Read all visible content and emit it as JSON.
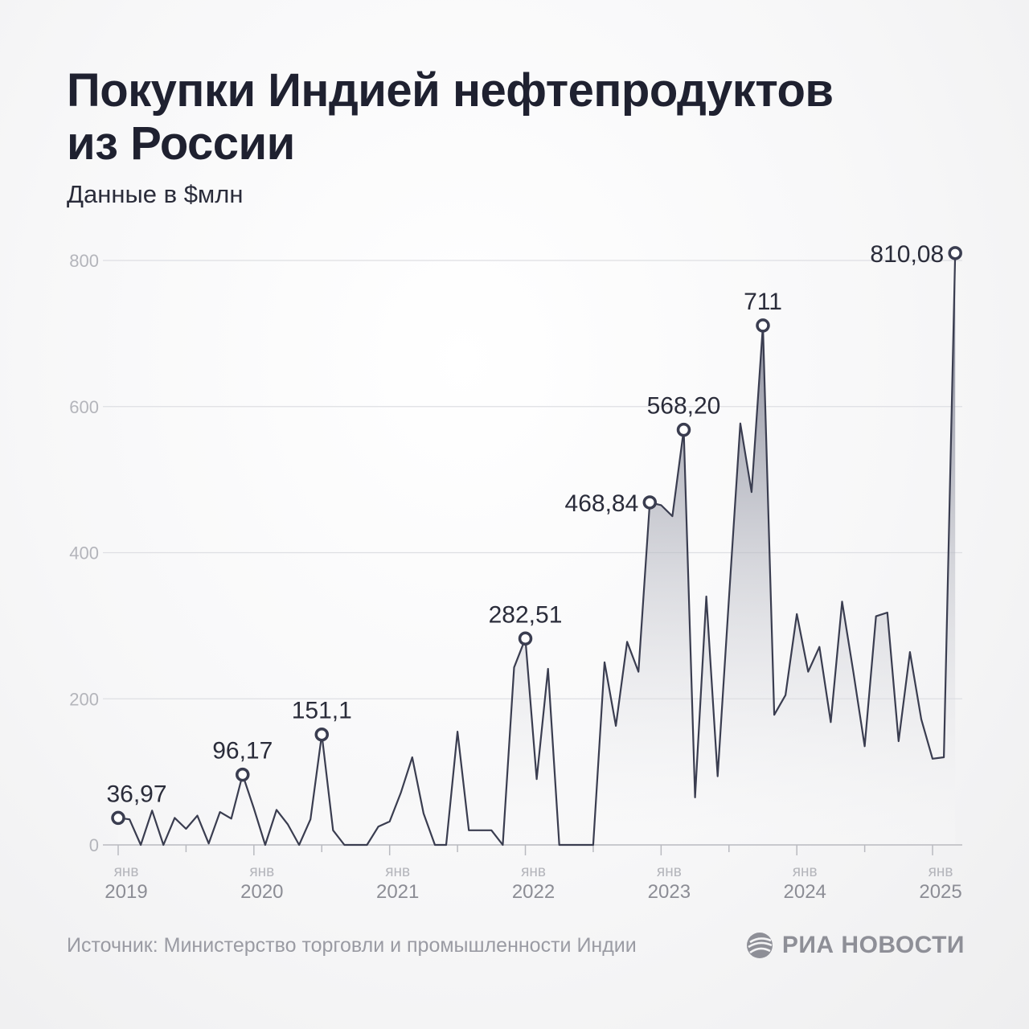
{
  "header": {
    "title_line1": "Покупки Индией нефтепродуктов",
    "title_line2": "из России",
    "subtitle": "Данные в $млн"
  },
  "footer": {
    "source": "Источник: Министерство торговли и промышленности Индии",
    "brand": "РИА НОВОСТИ"
  },
  "colors": {
    "line": "#3a3d50",
    "fill_top": "#6e7184",
    "fill_bottom": "#ffffff",
    "grid": "#dedfe3",
    "tick_text": "#b4b5bb",
    "label_text": "#2a2c3a"
  },
  "chart_data": {
    "type": "area",
    "ylim": [
      0,
      800
    ],
    "yticks": [
      0,
      200,
      400,
      600,
      800
    ],
    "grid": true,
    "x_start": "2019-01",
    "x_ticks": [
      {
        "month": "янв",
        "year": "2019"
      },
      {
        "month": "янв",
        "year": "2020"
      },
      {
        "month": "янв",
        "year": "2021"
      },
      {
        "month": "янв",
        "year": "2022"
      },
      {
        "month": "янв",
        "year": "2023"
      },
      {
        "month": "янв",
        "year": "2024"
      },
      {
        "month": "янв",
        "year": "2025"
      }
    ],
    "values": [
      36.97,
      35,
      0,
      47,
      0,
      37,
      22,
      40,
      2,
      45,
      36,
      96.17,
      50,
      0,
      48,
      28,
      0,
      35,
      151.1,
      20,
      0,
      0,
      0,
      25,
      32,
      72,
      120,
      43,
      0,
      0,
      155,
      20,
      20,
      20,
      0,
      243,
      282.51,
      90,
      241,
      0,
      0,
      0,
      0,
      250,
      163,
      278,
      237,
      468.84,
      465,
      450,
      568.2,
      65,
      340,
      94,
      338,
      577,
      483,
      711,
      178,
      205,
      316,
      237,
      271,
      168,
      333,
      236,
      135,
      313,
      318,
      142,
      264,
      172,
      118,
      120,
      810.08
    ],
    "annotations": [
      {
        "index": 0,
        "label": "36,97"
      },
      {
        "index": 11,
        "label": "96,17"
      },
      {
        "index": 18,
        "label": "151,1"
      },
      {
        "index": 36,
        "label": "282,51"
      },
      {
        "index": 47,
        "label": "468,84"
      },
      {
        "index": 50,
        "label": "568,20"
      },
      {
        "index": 57,
        "label": "711"
      },
      {
        "index": 74,
        "label": "810,08"
      }
    ]
  }
}
